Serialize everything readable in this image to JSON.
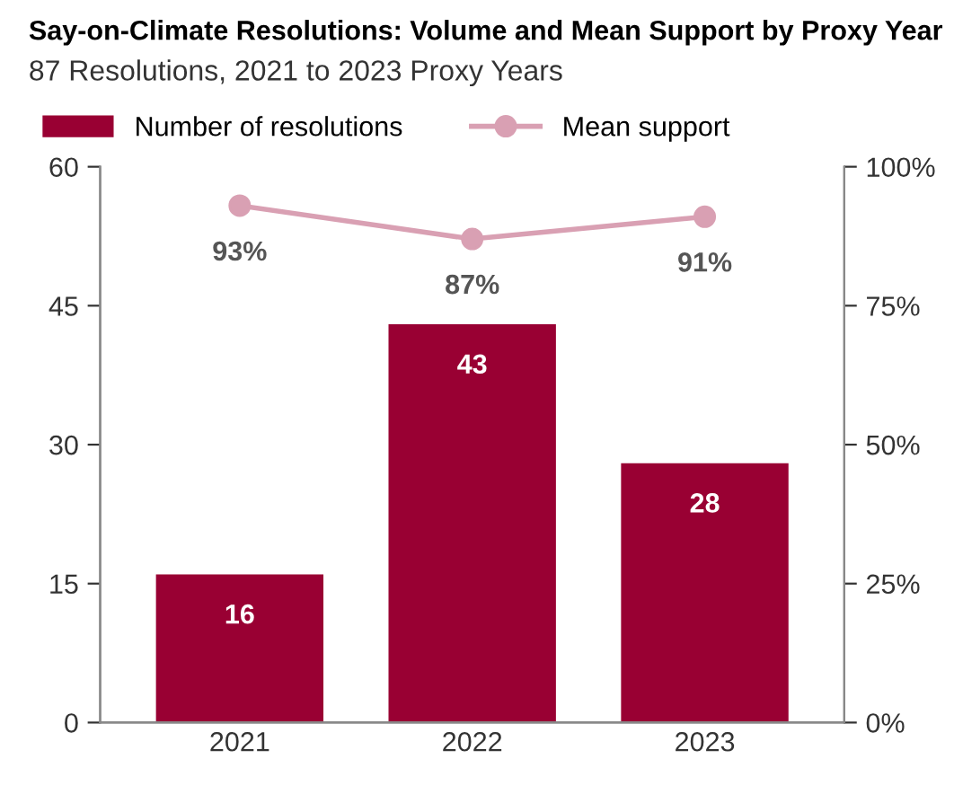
{
  "chart_data": {
    "type": "bar",
    "title": "Say-on-Climate Resolutions: Volume and Mean Support by Proxy Year",
    "subtitle": "87 Resolutions, 2021 to 2023 Proxy Years",
    "categories": [
      "2021",
      "2022",
      "2023"
    ],
    "series": [
      {
        "name": "Number of resolutions",
        "color": "#990033",
        "values": [
          16,
          43,
          28
        ],
        "value_labels": [
          "16",
          "43",
          "28"
        ]
      },
      {
        "name": "Mean support",
        "type": "line",
        "axis": "y2",
        "color": "#d9a0b3",
        "marker": "circle",
        "values": [
          93,
          87,
          91
        ],
        "value_labels": [
          "93%",
          "87%",
          "91%"
        ]
      }
    ],
    "ylim": [
      0,
      60
    ],
    "yticks": [
      0,
      15,
      30,
      45,
      60
    ],
    "y2lim": [
      0,
      100
    ],
    "y2ticks": [
      {
        "value": 0,
        "label": "0%"
      },
      {
        "value": 25,
        "label": "25%"
      },
      {
        "value": 50,
        "label": "50%"
      },
      {
        "value": 75,
        "label": "75%"
      },
      {
        "value": 100,
        "label": "100%"
      }
    ],
    "grid": false,
    "legend": "top left"
  }
}
